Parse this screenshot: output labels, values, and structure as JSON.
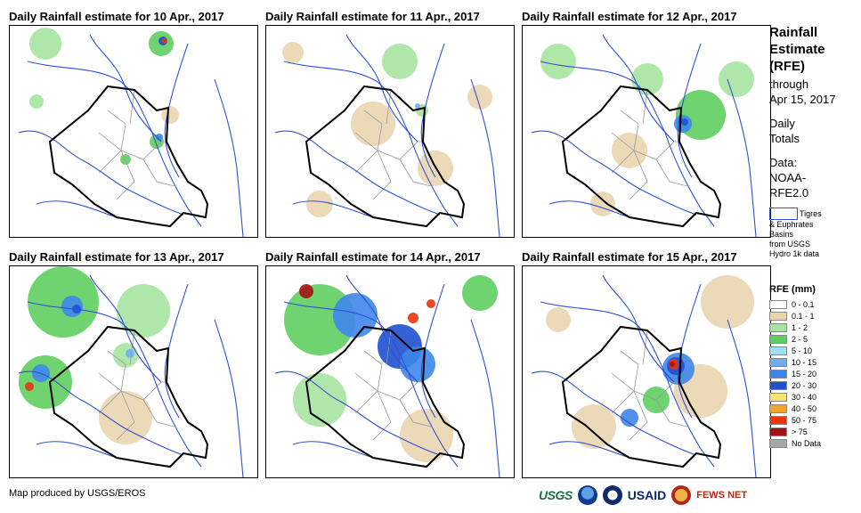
{
  "panels": [
    {
      "title": "Daily Rainfall estimate for 10 Apr., 2017"
    },
    {
      "title": "Daily Rainfall estimate for 11 Apr., 2017"
    },
    {
      "title": "Daily Rainfall estimate for 12 Apr., 2017"
    },
    {
      "title": "Daily Rainfall estimate for 13 Apr., 2017"
    },
    {
      "title": "Daily Rainfall estimate for 14 Apr., 2017"
    },
    {
      "title": "Daily Rainfall estimate for 15 Apr., 2017"
    }
  ],
  "sidebar": {
    "title_line1": "Rainfall",
    "title_line2": "Estimate",
    "title_line3": "(RFE)",
    "through": "through",
    "through_date": "Apr 15, 2017",
    "daily": "Daily",
    "totals": "Totals",
    "data_label": "Data:",
    "data_src1": "NOAA-",
    "data_src2": "RFE2.0",
    "basins_line1": "Tigres",
    "basins_line2": "& Euphrates",
    "basins_line3": "Basins",
    "basins_line4": "from USGS",
    "basins_line5": "Hydro 1k data"
  },
  "legend": {
    "title": "RFE (mm)",
    "items": [
      {
        "label": "0 - 0.1",
        "color": "#ffffff"
      },
      {
        "label": "0.1 - 1",
        "color": "#e9d5b0"
      },
      {
        "label": "1 - 2",
        "color": "#a6e3a0"
      },
      {
        "label": "2 - 5",
        "color": "#5fce60"
      },
      {
        "label": "5 - 10",
        "color": "#9fe0f6"
      },
      {
        "label": "10 - 15",
        "color": "#6eaef0"
      },
      {
        "label": "15 - 20",
        "color": "#3e86ea"
      },
      {
        "label": "20 - 30",
        "color": "#1f50d0"
      },
      {
        "label": "30 - 40",
        "color": "#f7e27a"
      },
      {
        "label": "40 - 50",
        "color": "#f5a524"
      },
      {
        "label": "50 - 75",
        "color": "#e8340f"
      },
      {
        "label": "> 75",
        "color": "#a21414"
      },
      {
        "label": "No Data",
        "color": "#a8a8a8"
      }
    ]
  },
  "footer": {
    "credit": "Map produced by USGS/EROS",
    "logo_usgs": "USGS",
    "logo_usaid": "USAID",
    "logo_fews": "FEWS NET"
  }
}
